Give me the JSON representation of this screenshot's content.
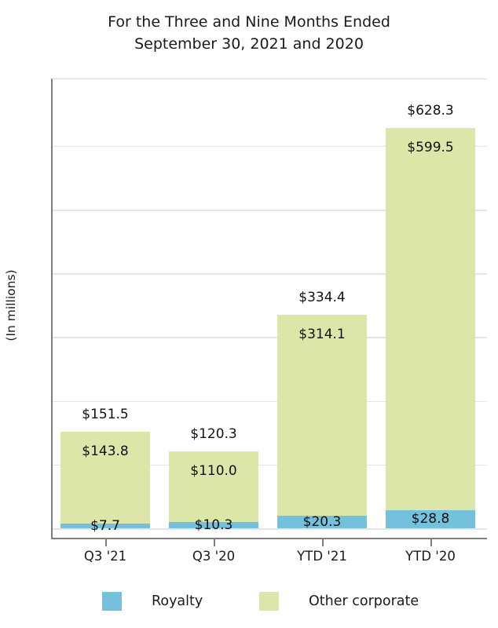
{
  "figure": {
    "title_line1": "For the Three and Nine Months Ended",
    "title_line2": "September 30, 2021 and 2020"
  },
  "chart_data": {
    "type": "bar",
    "stacked": true,
    "title": "For the Three and Nine Months Ended September 30, 2021 and 2020",
    "ylabel": "(In millions)",
    "xlabel": "",
    "categories": [
      "Q3 '21",
      "Q3 '20",
      "YTD '21",
      "YTD '20"
    ],
    "series": [
      {
        "name": "Royalty",
        "color": "#74c1de",
        "values": [
          7.7,
          10.3,
          20.3,
          28.8
        ],
        "data_labels": [
          "$7.7",
          "$10.3",
          "$20.3",
          "$28.8"
        ]
      },
      {
        "name": "Other corporate",
        "color": "#dde6a9",
        "values": [
          143.8,
          110.0,
          314.1,
          599.5
        ],
        "data_labels": [
          "$143.8",
          "$110.0",
          "$314.1",
          "$599.5"
        ]
      }
    ],
    "totals": [
      151.5,
      120.3,
      334.4,
      628.3
    ],
    "total_labels": [
      "$151.5",
      "$120.3",
      "$334.4",
      "$628.3"
    ],
    "ylim": [
      0,
      704
    ],
    "gridline_values": [
      0,
      100,
      200,
      300,
      400,
      500,
      600
    ],
    "grid": "horizontal-only",
    "legend_position": "bottom",
    "colors": {
      "grid": "#e5e5e5",
      "spine": "#7f7f7f",
      "panel_top_border": "#d9d9d9",
      "text": "#1a1a1a"
    }
  }
}
